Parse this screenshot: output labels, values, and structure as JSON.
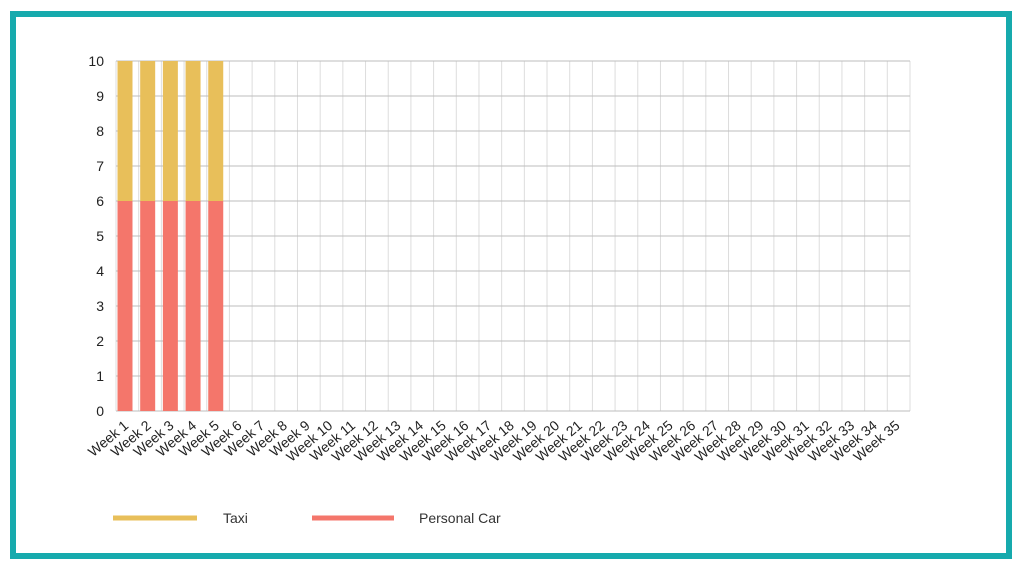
{
  "frame": {
    "border_color": "#16aaad"
  },
  "chart_data": {
    "type": "bar",
    "stacked": true,
    "categories": [
      "Week 1",
      "Week 2",
      "Week 3",
      "Week 4",
      "Week 5",
      "Week 6",
      "Week 7",
      "Week 8",
      "Week 9",
      "Week 10",
      "Week 11",
      "Week 12",
      "Week 13",
      "Week 14",
      "Week 15",
      "Week 16",
      "Week 17",
      "Week 18",
      "Week 19",
      "Week 20",
      "Week 21",
      "Week 22",
      "Week 23",
      "Week 24",
      "Week 25",
      "Week 26",
      "Week 27",
      "Week 28",
      "Week 29",
      "Week 30",
      "Week 31",
      "Week 32",
      "Week 33",
      "Week 34",
      "Week 35"
    ],
    "series": [
      {
        "name": "Personal Car",
        "color": "#f4766b",
        "values": [
          6,
          6,
          6,
          6,
          6,
          0,
          0,
          0,
          0,
          0,
          0,
          0,
          0,
          0,
          0,
          0,
          0,
          0,
          0,
          0,
          0,
          0,
          0,
          0,
          0,
          0,
          0,
          0,
          0,
          0,
          0,
          0,
          0,
          0,
          0
        ]
      },
      {
        "name": "Taxi",
        "color": "#e8bf5a",
        "values": [
          4,
          4,
          4,
          4,
          4,
          0,
          0,
          0,
          0,
          0,
          0,
          0,
          0,
          0,
          0,
          0,
          0,
          0,
          0,
          0,
          0,
          0,
          0,
          0,
          0,
          0,
          0,
          0,
          0,
          0,
          0,
          0,
          0,
          0,
          0
        ]
      }
    ],
    "yticks": [
      "0",
      "1",
      "2",
      "3",
      "4",
      "5",
      "6",
      "7",
      "8",
      "9",
      "10"
    ],
    "ylim": [
      0,
      10
    ],
    "grid": true,
    "legend_position": "bottom-left",
    "legend": [
      {
        "label": "Taxi",
        "color": "#e8bf5a"
      },
      {
        "label": "Personal Car",
        "color": "#f4766b"
      }
    ]
  }
}
